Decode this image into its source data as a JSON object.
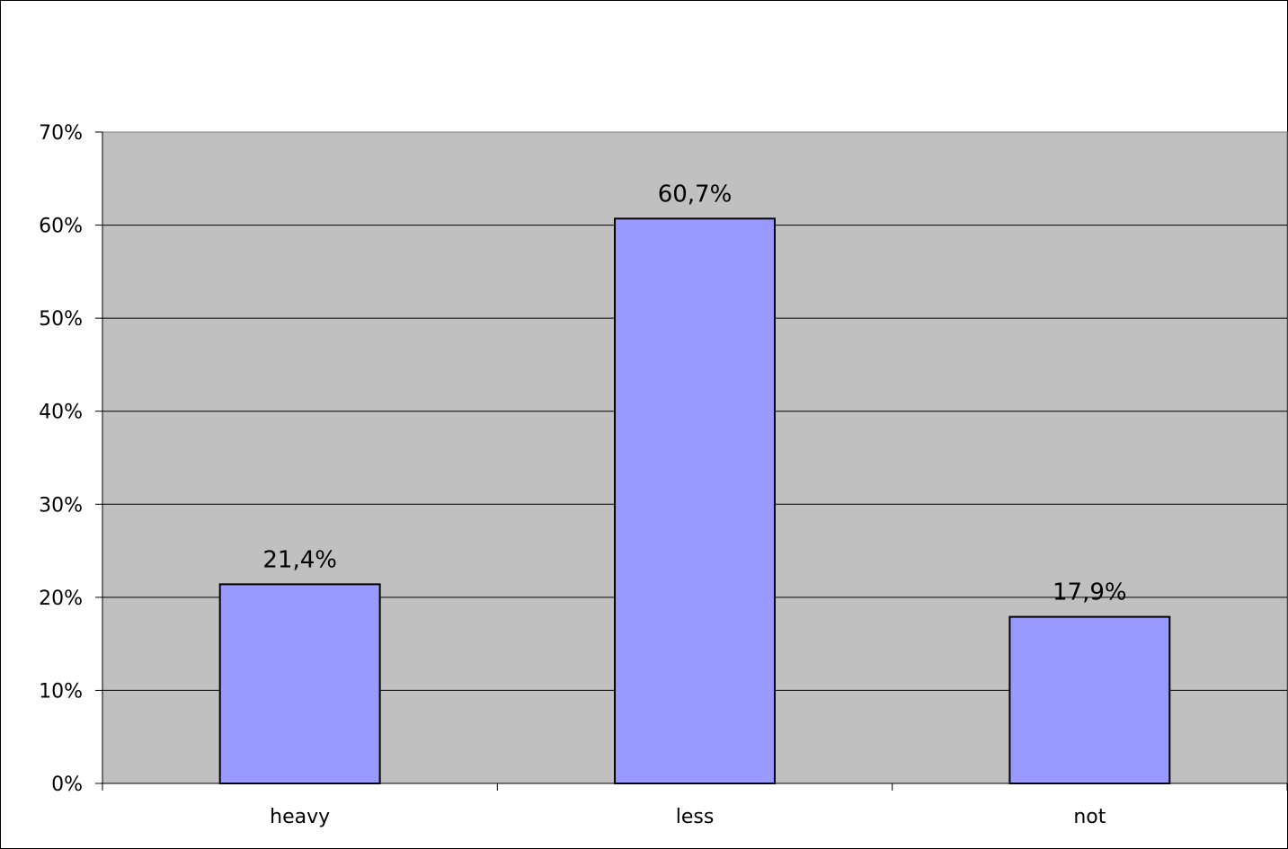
{
  "chart_data": {
    "type": "bar",
    "title": "",
    "xlabel": "",
    "ylabel": "",
    "categories": [
      "heavy",
      "less",
      "not"
    ],
    "values": [
      21.4,
      60.7,
      17.9
    ],
    "data_labels": [
      "21,4%",
      "60,7%",
      "17,9%"
    ],
    "ylim": [
      0,
      70
    ],
    "yticks": [
      0,
      10,
      20,
      30,
      40,
      50,
      60,
      70
    ],
    "ytick_labels": [
      "0%",
      "10%",
      "20%",
      "30%",
      "40%",
      "50%",
      "60%",
      "70%"
    ],
    "grid": true,
    "legend": "none",
    "colors": {
      "bar_fill": "#9999ff",
      "bar_stroke": "#000000",
      "plot_background": "#c0c0c0",
      "gridline": "#000000"
    }
  }
}
